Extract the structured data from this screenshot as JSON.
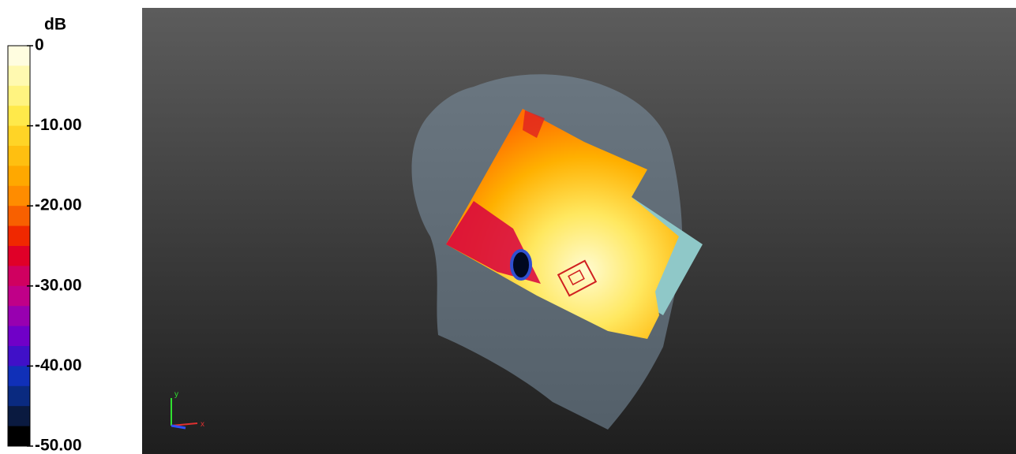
{
  "colorbar": {
    "title": "dB",
    "lim": [
      -50,
      0
    ],
    "ticks": [
      0,
      {
        "value": -10,
        "label": "-10.00"
      },
      {
        "value": -20,
        "label": "-20.00"
      },
      {
        "value": -30,
        "label": "-30.00"
      },
      {
        "value": -40,
        "label": "-40.00"
      },
      {
        "value": -50,
        "label": "-50.00"
      }
    ],
    "colors": [
      "#fffde0",
      "#fff9b0",
      "#fff380",
      "#ffe94a",
      "#ffd426",
      "#ffbf10",
      "#ffa800",
      "#ff8c00",
      "#f86000",
      "#f02800",
      "#e00028",
      "#d00060",
      "#c00088",
      "#9800b0",
      "#7000c8",
      "#4010c8",
      "#1030b8",
      "#0a2a80",
      "#0a1a40",
      "#000000"
    ]
  },
  "axes_triad": {
    "x": "x",
    "y": "y"
  }
}
